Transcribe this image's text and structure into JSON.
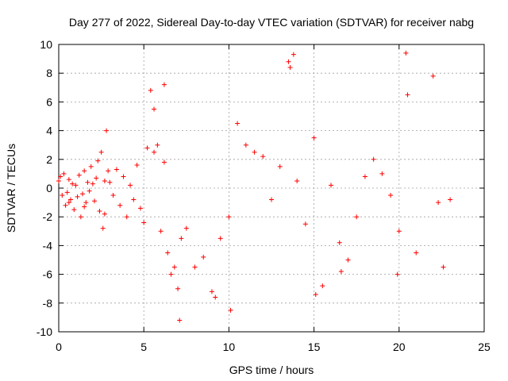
{
  "chart_data": {
    "type": "scatter",
    "title": "Day 277 of 2022, Sidereal Day-to-day VTEC variation (SDTVAR) for receiver nabg",
    "xlabel": "GPS time / hours",
    "ylabel": "SDTVAR / TECUs",
    "xlim": [
      0,
      25
    ],
    "ylim": [
      -10,
      10
    ],
    "xticks": [
      0,
      5,
      10,
      15,
      20,
      25
    ],
    "yticks": [
      -10,
      -8,
      -6,
      -4,
      -2,
      0,
      2,
      4,
      6,
      8,
      10
    ],
    "grid": true,
    "marker": "+",
    "color": "#ff0000",
    "series": [
      {
        "name": "SDTVAR",
        "x": [
          0.0,
          0.1,
          0.2,
          0.3,
          0.4,
          0.5,
          0.6,
          0.7,
          0.8,
          0.9,
          1.0,
          1.1,
          1.2,
          1.3,
          1.4,
          1.5,
          1.6,
          1.7,
          1.8,
          1.9,
          2.0,
          2.1,
          2.2,
          2.3,
          2.4,
          2.5,
          2.6,
          2.7,
          2.8,
          2.9,
          3.0,
          3.2,
          3.4,
          3.6,
          3.8,
          4.0,
          4.2,
          4.4,
          4.6,
          4.8,
          5.0,
          5.2,
          5.4,
          5.6,
          5.8,
          6.0,
          6.2,
          6.4,
          6.6,
          6.8,
          7.0,
          7.2,
          7.5,
          8.0,
          8.5,
          9.0,
          9.5,
          10.0,
          10.5,
          11.0,
          11.5,
          12.0,
          12.5,
          13.0,
          13.5,
          14.0,
          14.5,
          15.0,
          15.5,
          16.0,
          16.5,
          17.0,
          17.5,
          18.0,
          18.5,
          19.0,
          19.5,
          20.0,
          20.5,
          21.0,
          22.0,
          22.3,
          22.6,
          23.0,
          0.6,
          1.5,
          2.7,
          5.6,
          6.2,
          7.1,
          9.2,
          10.1,
          13.6,
          13.8,
          15.1,
          16.6,
          19.9,
          20.4
        ],
        "y": [
          0.5,
          0.8,
          -0.5,
          1.0,
          -1.2,
          -0.3,
          0.6,
          -0.8,
          0.3,
          -1.5,
          0.2,
          -0.6,
          0.9,
          -2.0,
          -0.4,
          1.2,
          -1.0,
          0.4,
          -0.2,
          1.5,
          0.3,
          -0.9,
          0.7,
          1.9,
          -1.6,
          2.5,
          -2.8,
          0.5,
          4.0,
          1.2,
          0.4,
          -0.5,
          1.3,
          -1.2,
          0.8,
          -2.0,
          0.2,
          -0.8,
          1.6,
          -1.4,
          -2.4,
          2.8,
          6.8,
          5.5,
          3.0,
          -3.0,
          1.8,
          -4.5,
          -6.0,
          -5.5,
          -7.0,
          -3.5,
          -2.8,
          -5.5,
          -4.8,
          -7.2,
          -3.5,
          -2.0,
          4.5,
          3.0,
          2.5,
          2.2,
          -0.8,
          1.5,
          8.8,
          0.5,
          -2.5,
          3.5,
          -6.8,
          0.2,
          -3.8,
          -5.0,
          -2.0,
          0.8,
          2.0,
          1.0,
          -0.5,
          -3.0,
          6.5,
          -4.5,
          7.8,
          -1.0,
          -5.5,
          -0.8,
          -1.0,
          -1.3,
          -1.8,
          2.5,
          7.2,
          -9.2,
          -7.6,
          -8.5,
          8.4,
          9.3,
          -7.4,
          -5.8,
          -6.0,
          9.4
        ]
      }
    ]
  }
}
